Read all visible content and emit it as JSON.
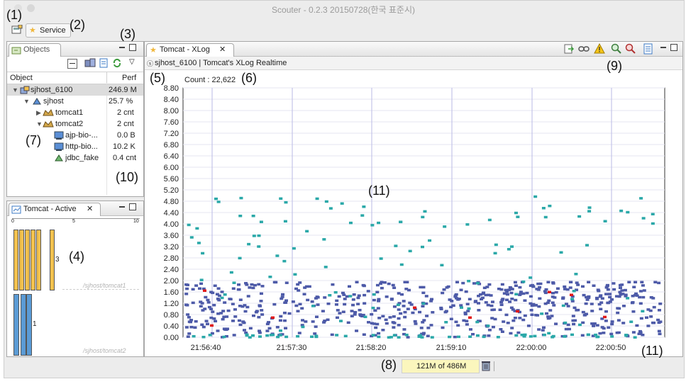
{
  "window": {
    "title": "Scouter - 0.2.3 20150728(한국 표준시)"
  },
  "annotations": [
    "(1)",
    "(2)",
    "(3)",
    "(4)",
    "(5)",
    "(6)",
    "(7)",
    "(8)",
    "(9)",
    "(10)",
    "(11)",
    "(11)"
  ],
  "perspective": {
    "service_tab_label": "Service"
  },
  "objects_panel": {
    "title": "Objects",
    "columns": [
      "Object",
      "Perf"
    ],
    "rows": [
      {
        "name": "sjhost_6100",
        "perf": "246.9 M",
        "icon": "server-agent-icon",
        "selected": true
      },
      {
        "name": "sjhost",
        "perf": "25.7 %",
        "icon": "host-icon"
      },
      {
        "name": "tomcat1",
        "perf": "2 cnt",
        "icon": "tomcat-icon"
      },
      {
        "name": "tomcat2",
        "perf": "2 cnt",
        "icon": "tomcat-icon"
      },
      {
        "name": "ajp-bio-...",
        "perf": "0.0 B",
        "icon": "connector-icon"
      },
      {
        "name": "http-bio...",
        "perf": "10.2 K",
        "icon": "connector-icon"
      },
      {
        "name": "jdbc_fake",
        "perf": "0.4 cnt",
        "icon": "jdbc-icon"
      }
    ]
  },
  "active_panel": {
    "title": "Tomcat - Active",
    "scale_ticks": [
      "0",
      "5",
      "10"
    ],
    "groups": [
      {
        "label": "/sjhost/tomcat1",
        "count": "3",
        "bars": 6,
        "color": "#f2c14e"
      },
      {
        "label": "/sjhost/tomcat2",
        "count": "1",
        "bars": 3,
        "color": "#5b9bd5"
      }
    ]
  },
  "xlog_panel": {
    "tab_title": "Tomcat - XLog",
    "subtitle": "sjhost_6100 | Tomcat's XLog Realtime",
    "count_label": "Count : 22,622"
  },
  "chart_data": {
    "type": "scatter",
    "title": "",
    "xlabel": "",
    "ylabel": "",
    "ylim": [
      0,
      8.8
    ],
    "yticks": [
      "0.00",
      "0.40",
      "0.80",
      "1.20",
      "1.60",
      "2.00",
      "2.40",
      "2.80",
      "3.20",
      "3.60",
      "4.00",
      "4.40",
      "4.80",
      "5.20",
      "5.60",
      "6.00",
      "6.40",
      "6.80",
      "7.20",
      "7.60",
      "8.00",
      "8.40",
      "8.80"
    ],
    "xticks": [
      "21:56:40",
      "21:57:30",
      "21:58:20",
      "21:59:10",
      "22:00:00",
      "22:00:50"
    ],
    "series": [
      {
        "color": "#4d5aa8",
        "values_summary": "dense band of response times between 0.0 and 2.0 s"
      },
      {
        "color": "#2aa8a8",
        "values_summary": "scattered response times between 0.0 and 5.0 s"
      },
      {
        "color": "#e01818",
        "values_summary": "error transactions between 0.4 and 1.7 s"
      }
    ]
  },
  "status_bar": {
    "memory": "121M of 486M"
  },
  "colors": {
    "accent": "#3b78c4",
    "xlog_blue": "#4d5aa8",
    "xlog_teal": "#2aa8a8",
    "xlog_error": "#e01818"
  }
}
